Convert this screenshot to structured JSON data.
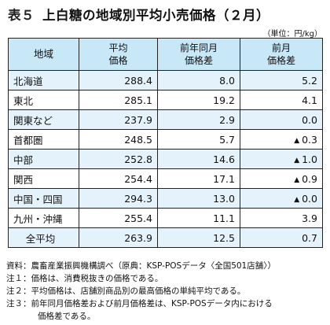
{
  "title": {
    "number": "表５",
    "text": "上白糖の地域別平均小売価格（２月）"
  },
  "unit": "（単位：円/kg）",
  "table": {
    "headers": {
      "region": "地域",
      "price_l1": "平均",
      "price_l2": "価格",
      "yoy_l1": "前年同月",
      "yoy_l2": "価格差",
      "mom_l1": "前月",
      "mom_l2": "価格差"
    },
    "rows": [
      {
        "region": "北海道",
        "price": "288.4",
        "yoy": "8.0",
        "mom": "5.2",
        "neg": false
      },
      {
        "region": "東北",
        "price": "285.1",
        "yoy": "19.2",
        "mom": "4.1",
        "neg": false
      },
      {
        "region": "関東など",
        "price": "237.9",
        "yoy": "2.9",
        "mom": "0.0",
        "neg": false
      },
      {
        "region": "首都圏",
        "price": "248.5",
        "yoy": "5.7",
        "mom": "0.3",
        "neg": true
      },
      {
        "region": "中部",
        "price": "252.8",
        "yoy": "14.6",
        "mom": "1.0",
        "neg": true
      },
      {
        "region": "関西",
        "price": "254.4",
        "yoy": "17.1",
        "mom": "0.9",
        "neg": true
      },
      {
        "region": "中国・四国",
        "price": "294.3",
        "yoy": "13.0",
        "mom": "0.0",
        "neg": true
      },
      {
        "region": "九州・沖縄",
        "price": "255.4",
        "yoy": "11.1",
        "mom": "3.9",
        "neg": false
      },
      {
        "region": "全平均",
        "price": "263.9",
        "yoy": "12.5",
        "mom": "0.7",
        "neg": false
      }
    ],
    "neg_mark": "▲"
  },
  "notes": {
    "source": "資料：農畜産業振興機構調べ（原典：KSP-POSデータ〈全国501店舗〉）",
    "note1": "注１：価格は、消費税抜きの価格である。",
    "note2": "注２：平均価格は、店舗別商品別の最高価格の単純平均である。",
    "note3_l1": "注３：前年同月価格差および前月価格差は、KSP-POSデータ内における",
    "note3_l2": "価格差である。"
  }
}
